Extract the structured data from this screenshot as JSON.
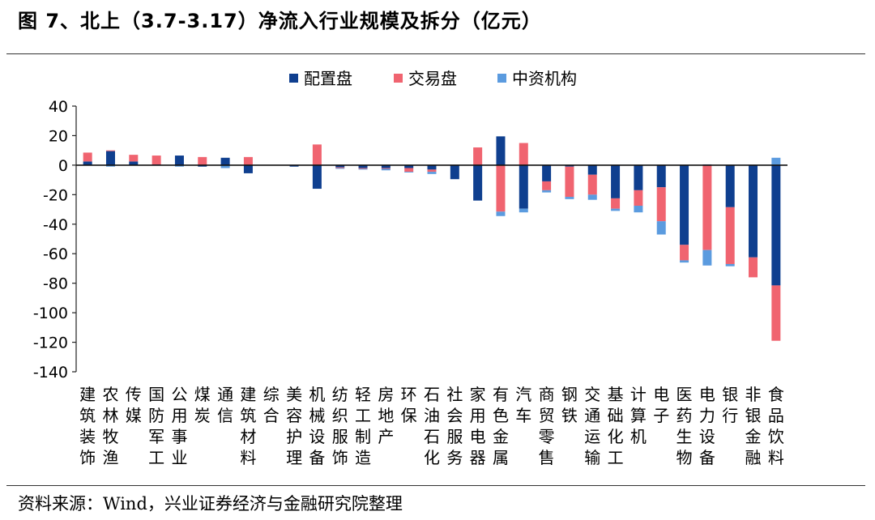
{
  "title": "图 7、北上（3.7-3.17）净流入行业规模及拆分（亿元）",
  "source": "资料来源：Wind，兴业证券经济与金融研究院整理",
  "chart_data": {
    "type": "bar",
    "stacked": true,
    "title": "图 7、北上（3.7-3.17）净流入行业规模及拆分（亿元）",
    "xlabel": "",
    "ylabel": "",
    "ylim": [
      -140,
      40
    ],
    "yticks": [
      40,
      20,
      0,
      -20,
      -40,
      -60,
      -80,
      -100,
      -120,
      -140
    ],
    "legend_position": "top-center",
    "categories": [
      "建筑装饰",
      "农林牧渔",
      "传媒",
      "国防军工",
      "公用事业",
      "煤炭",
      "通信",
      "建筑材料",
      "综合",
      "美容护理",
      "机械设备",
      "纺织服饰",
      "轻工制造",
      "房地产",
      "环保",
      "石油石化",
      "社会服务",
      "家用电器",
      "有色金属",
      "汽车",
      "商贸零售",
      "钢铁",
      "交通运输",
      "基础化工",
      "计算机",
      "电子",
      "医药生物",
      "电力设备",
      "银行",
      "非银金融",
      "食品饮料"
    ],
    "series": [
      {
        "name": "配置盘",
        "color": "#0f3f8f",
        "values": [
          2.5,
          9.5,
          2.5,
          0.5,
          6.5,
          -1.0,
          5.0,
          -5.5,
          0.0,
          -1.0,
          -16.0,
          -1.5,
          -2.0,
          -2.0,
          -2.0,
          -3.0,
          -9.5,
          -24.0,
          19.5,
          -29.5,
          -11.0,
          -1.0,
          -6.5,
          -22.5,
          -17.0,
          -15.0,
          -54.0,
          0.5,
          -28.5,
          -62.5,
          -81.5
        ]
      },
      {
        "name": "交易盘",
        "color": "#f06470",
        "values": [
          6.0,
          0.5,
          4.5,
          6.0,
          0.0,
          5.5,
          0.0,
          5.5,
          0.0,
          0.0,
          14.0,
          -0.5,
          -0.5,
          -0.5,
          -2.5,
          -1.5,
          0.0,
          12.0,
          -31.5,
          15.0,
          -6.0,
          -20.5,
          -13.5,
          -7.0,
          -10.5,
          -23.0,
          -10.5,
          -57.5,
          -38.5,
          -13.5,
          -37.5
        ]
      },
      {
        "name": "中资机构",
        "color": "#5b9bdf",
        "values": [
          0.0,
          -1.0,
          0.0,
          0.0,
          -1.0,
          0.0,
          -2.0,
          0.0,
          0.0,
          0.0,
          0.0,
          -0.5,
          -0.5,
          -1.0,
          -0.5,
          -1.5,
          0.0,
          0.0,
          -3.0,
          -2.5,
          -1.5,
          -1.5,
          -3.5,
          -1.5,
          -4.5,
          -9.0,
          -1.5,
          -10.5,
          -1.5,
          0.0,
          5.0
        ]
      }
    ]
  }
}
